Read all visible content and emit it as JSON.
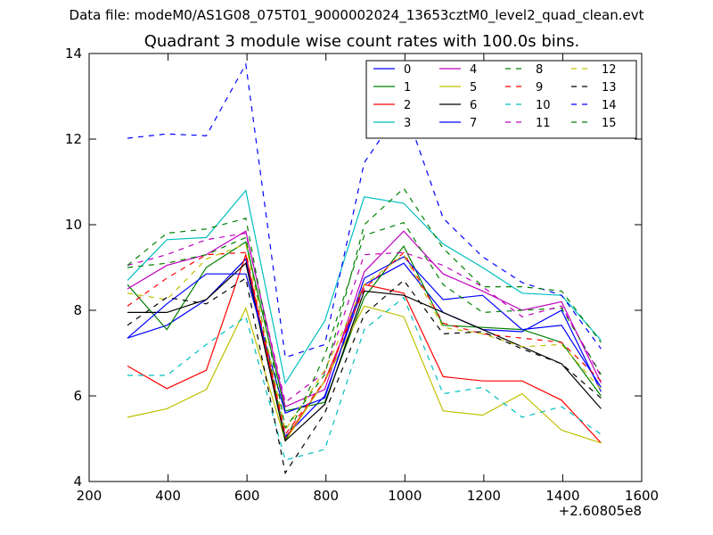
{
  "figure": {
    "data_file_label": "Data file: modeM0/AS1G08_075T01_9000002024_13653cztM0_level2_quad_clean.evt",
    "title": "Quadrant 3 module wise count rates with 100.0s bins."
  },
  "chart_data": {
    "type": "line",
    "title": "Quadrant 3 module wise count rates with 100.0s bins.",
    "xlabel": "",
    "ylabel": "",
    "x_offset_label": "+2.60805e8",
    "xlim": [
      200,
      1600
    ],
    "ylim": [
      4,
      14
    ],
    "xticks": [
      200,
      400,
      600,
      800,
      1000,
      1200,
      1400,
      1600
    ],
    "yticks": [
      4,
      6,
      8,
      10,
      12,
      14
    ],
    "grid": false,
    "legend_position": "top-right",
    "legend_columns": 4,
    "x": [
      297,
      397,
      497,
      597,
      697,
      797,
      897,
      997,
      1097,
      1197,
      1297,
      1397,
      1497
    ],
    "series": [
      {
        "name": "0",
        "color": "#0000ff",
        "style": "solid",
        "values": [
          7.35,
          7.65,
          8.25,
          9.2,
          5.05,
          6.0,
          8.6,
          9.1,
          7.95,
          7.55,
          7.5,
          8.0,
          6.1
        ]
      },
      {
        "name": "1",
        "color": "#008000",
        "style": "solid",
        "values": [
          8.6,
          7.55,
          9.0,
          9.6,
          5.65,
          5.85,
          8.3,
          9.5,
          7.65,
          7.6,
          7.55,
          7.25,
          6.0
        ]
      },
      {
        "name": "2",
        "color": "#ff0000",
        "style": "solid",
        "values": [
          6.7,
          6.17,
          6.6,
          9.3,
          5.0,
          6.35,
          8.6,
          8.4,
          6.45,
          6.35,
          6.35,
          5.9,
          4.9
        ]
      },
      {
        "name": "3",
        "color": "#00bfbf",
        "style": "solid",
        "values": [
          8.7,
          9.65,
          9.7,
          10.8,
          6.3,
          7.75,
          10.65,
          10.5,
          9.55,
          9.0,
          8.4,
          8.35,
          7.3
        ]
      },
      {
        "name": "4",
        "color": "#bf00bf",
        "style": "solid",
        "values": [
          8.5,
          9.05,
          9.3,
          9.85,
          5.75,
          6.15,
          8.9,
          9.85,
          8.85,
          8.45,
          8.0,
          8.2,
          6.3
        ]
      },
      {
        "name": "5",
        "color": "#bfbf00",
        "style": "solid",
        "values": [
          5.5,
          5.7,
          6.15,
          8.05,
          4.95,
          6.35,
          8.1,
          7.85,
          5.65,
          5.55,
          6.05,
          5.2,
          4.9
        ]
      },
      {
        "name": "6",
        "color": "#000000",
        "style": "solid",
        "values": [
          7.95,
          7.95,
          8.25,
          9.1,
          4.95,
          5.8,
          8.45,
          8.35,
          7.95,
          7.55,
          7.15,
          6.75,
          5.7
        ]
      },
      {
        "name": "7",
        "color": "#0000ff",
        "style": "solid",
        "values": [
          7.35,
          8.15,
          8.85,
          8.85,
          5.6,
          5.95,
          8.75,
          9.25,
          8.25,
          8.35,
          7.55,
          7.65,
          6.2
        ]
      },
      {
        "name": "8",
        "color": "#008000",
        "style": "dashed",
        "values": [
          9.0,
          9.1,
          9.3,
          9.7,
          4.95,
          6.95,
          9.75,
          10.05,
          8.6,
          7.95,
          8.0,
          8.05,
          6.5
        ]
      },
      {
        "name": "9",
        "color": "#ff0000",
        "style": "dashed",
        "values": [
          8.1,
          8.75,
          9.3,
          9.35,
          5.1,
          6.35,
          8.5,
          9.35,
          7.7,
          7.45,
          7.35,
          7.25,
          6.35
        ]
      },
      {
        "name": "10",
        "color": "#00bfbf",
        "style": "dashed",
        "values": [
          6.48,
          6.48,
          7.2,
          7.85,
          4.5,
          4.75,
          7.55,
          8.3,
          6.05,
          6.2,
          5.5,
          5.75,
          5.1
        ]
      },
      {
        "name": "11",
        "color": "#bf00bf",
        "style": "dashed",
        "values": [
          9.05,
          9.3,
          9.65,
          9.8,
          5.85,
          6.55,
          9.3,
          9.35,
          9.05,
          8.55,
          7.85,
          8.1,
          6.45
        ]
      },
      {
        "name": "12",
        "color": "#bfbf00",
        "style": "dashed",
        "values": [
          8.4,
          8.25,
          9.2,
          9.55,
          5.2,
          6.6,
          8.6,
          9.3,
          7.6,
          7.45,
          7.15,
          7.2,
          6.15
        ]
      },
      {
        "name": "13",
        "color": "#000000",
        "style": "dashed",
        "values": [
          7.65,
          8.3,
          8.15,
          8.75,
          4.2,
          5.6,
          7.9,
          8.7,
          7.45,
          7.5,
          7.1,
          6.75,
          5.95
        ]
      },
      {
        "name": "14",
        "color": "#0000ff",
        "style": "dashed",
        "values": [
          12.02,
          12.12,
          12.08,
          13.75,
          6.9,
          7.2,
          11.45,
          12.8,
          10.15,
          9.25,
          8.65,
          8.35,
          7.1
        ]
      },
      {
        "name": "15",
        "color": "#008000",
        "style": "dashed",
        "values": [
          9.05,
          9.8,
          9.9,
          10.15,
          5.25,
          6.5,
          10.0,
          10.85,
          9.45,
          8.55,
          8.55,
          8.45,
          7.25
        ]
      }
    ]
  }
}
